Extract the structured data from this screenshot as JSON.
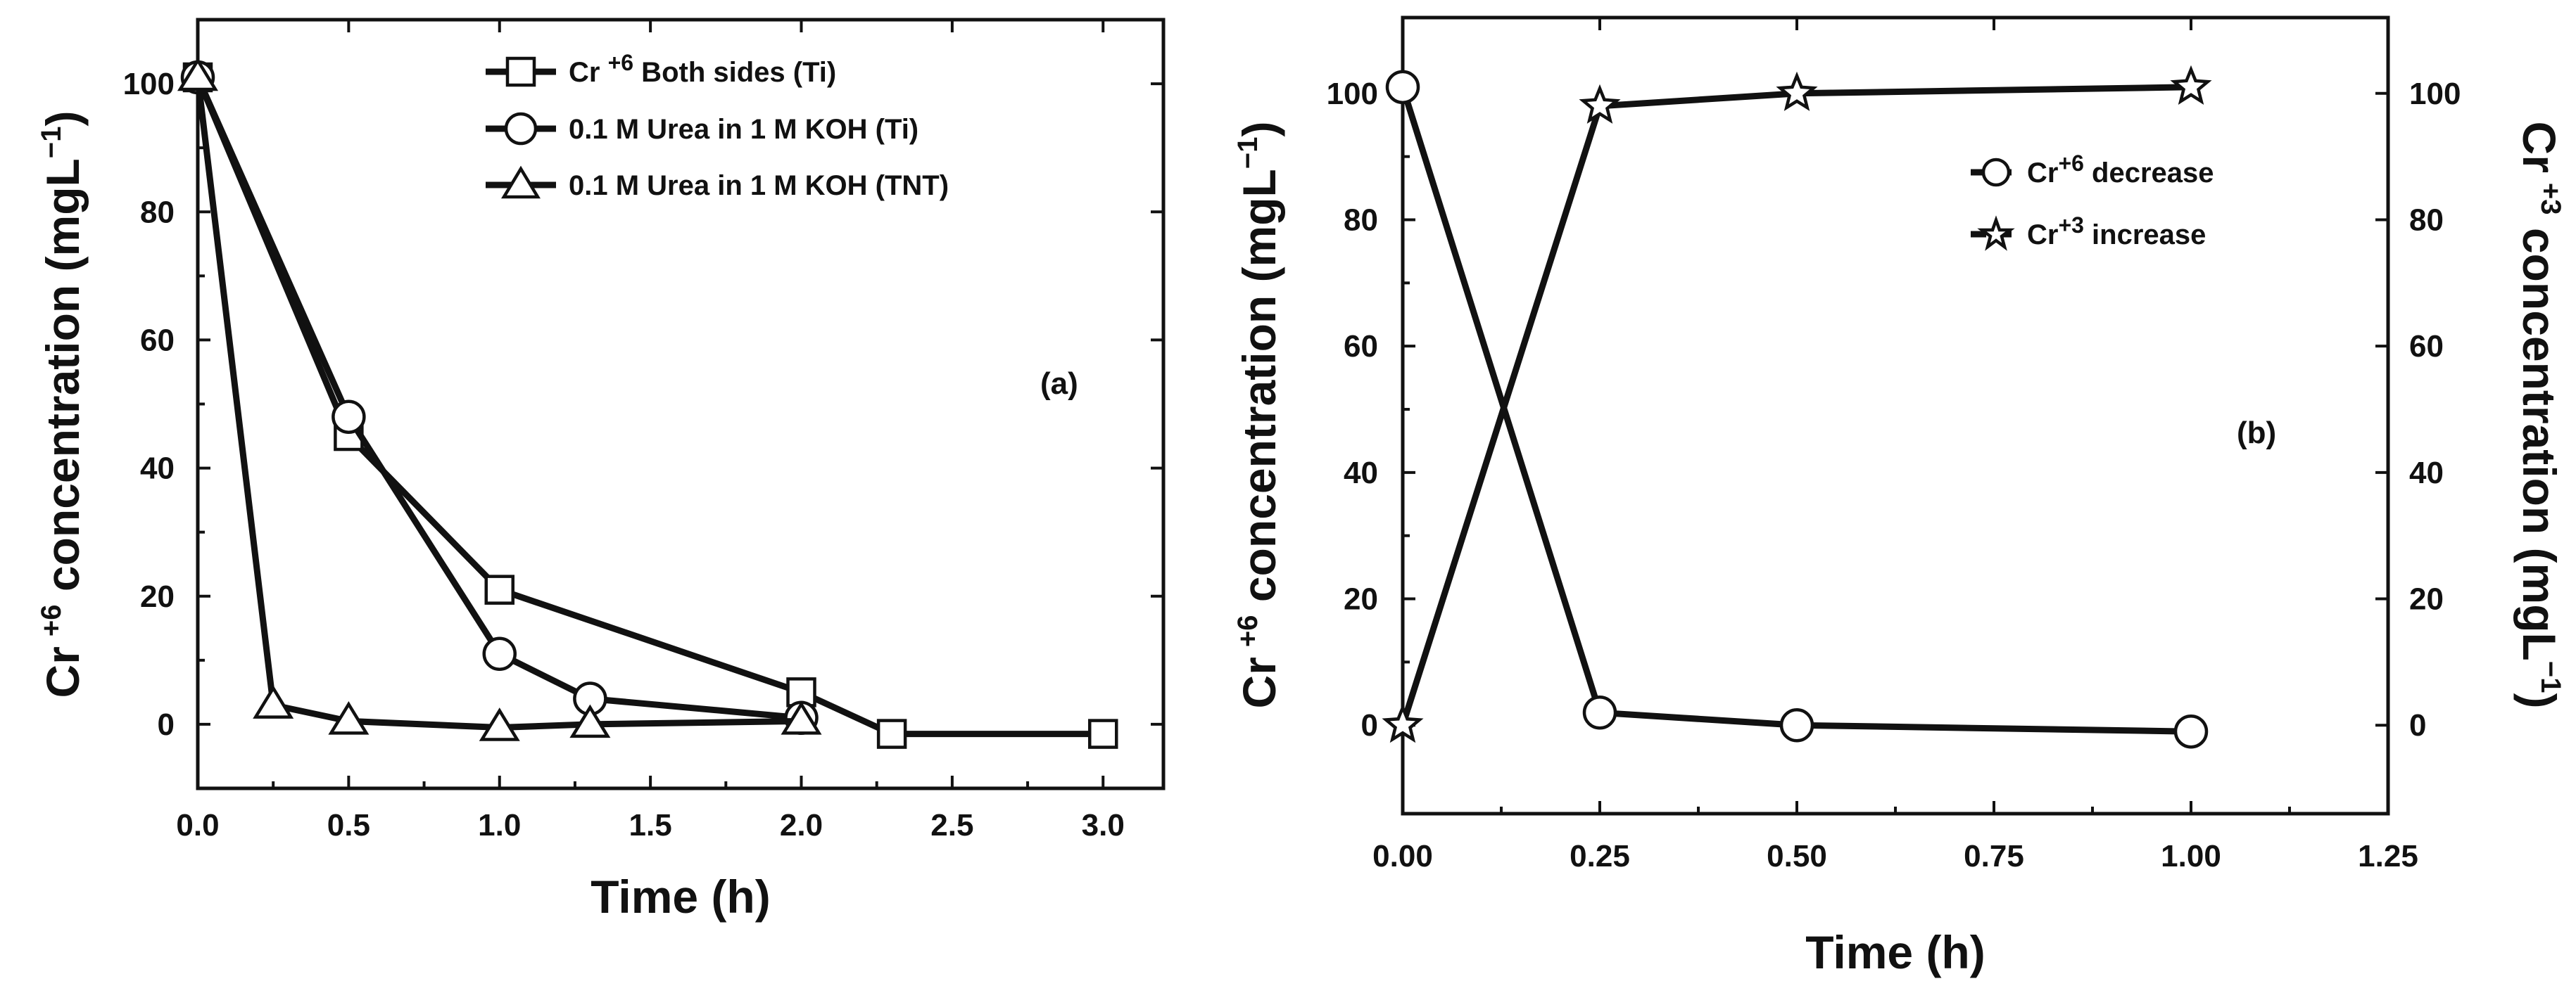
{
  "chart_data": [
    {
      "type": "line",
      "panel_label": "(a)",
      "xlabel": "Time (h)",
      "ylabel": {
        "prefix": "Cr",
        "sup": "+6",
        "rest": " concentration (mgL",
        "unit_sup": "−1",
        "close": ")"
      },
      "xlim": [
        0,
        3.2
      ],
      "ylim": [
        -10,
        110
      ],
      "xticks": [
        0,
        0.5,
        1,
        1.5,
        2,
        2.5,
        3
      ],
      "xtick_labels": [
        "0.0",
        "0.5",
        "1.0",
        "1.5",
        "2.0",
        "2.5",
        "3.0"
      ],
      "yticks": [
        0,
        20,
        40,
        60,
        80,
        100
      ],
      "ytick_labels": [
        "0",
        "20",
        "40",
        "60",
        "80",
        "100"
      ],
      "legend_position": "top-right",
      "series": [
        {
          "name": {
            "pre": "Cr ",
            "sup": "+6",
            "post": " Both sides (Ti)"
          },
          "marker": "square",
          "x": [
            0,
            0.5,
            1,
            2,
            2.3,
            3
          ],
          "y": [
            101,
            45,
            21,
            5,
            -1.5,
            -1.5
          ]
        },
        {
          "name": {
            "pre": "0.1 M Urea in 1 M KOH (Ti)",
            "sup": "",
            "post": ""
          },
          "marker": "circle",
          "x": [
            0,
            0.5,
            1,
            1.3,
            2
          ],
          "y": [
            101,
            48,
            11,
            4,
            1
          ]
        },
        {
          "name": {
            "pre": "0.1 M Urea in 1 M KOH (TNT)",
            "sup": "",
            "post": ""
          },
          "marker": "triangle",
          "x": [
            0,
            0.25,
            0.5,
            1,
            1.3,
            2
          ],
          "y": [
            101,
            3,
            0.5,
            -0.5,
            0,
            0.5
          ]
        }
      ]
    },
    {
      "type": "line",
      "panel_label": "(b)",
      "xlabel": "Time (h)",
      "ylabel": {
        "prefix": "Cr",
        "sup": "+6",
        "rest": " concentration (mgL",
        "unit_sup": "−1",
        "close": ")"
      },
      "ylabel_right": {
        "prefix": "Cr",
        "sup": "+3",
        "rest": " concentration  (mgL",
        "unit_sup": "−1",
        "close": ")"
      },
      "xlim": [
        0,
        1.25
      ],
      "ylim": [
        -14,
        112
      ],
      "xticks": [
        0,
        0.25,
        0.5,
        0.75,
        1,
        1.25
      ],
      "xtick_labels": [
        "0.00",
        "0.25",
        "0.50",
        "0.75",
        "1.00",
        "1.25"
      ],
      "yticks": [
        0,
        20,
        40,
        60,
        80,
        100
      ],
      "ytick_labels": [
        "0",
        "20",
        "40",
        "60",
        "80",
        "100"
      ],
      "legend_position": "upper-right",
      "series": [
        {
          "name": {
            "pre": "Cr",
            "sup": "+6",
            "post": " decrease"
          },
          "marker": "circle",
          "x": [
            0,
            0.25,
            0.5,
            1
          ],
          "y": [
            101,
            2,
            0,
            -1
          ]
        },
        {
          "name": {
            "pre": "Cr",
            "sup": "+3",
            "post": " increase"
          },
          "marker": "star",
          "x": [
            0,
            0.25,
            0.5,
            1
          ],
          "y": [
            0,
            98,
            100,
            101
          ]
        }
      ]
    }
  ]
}
